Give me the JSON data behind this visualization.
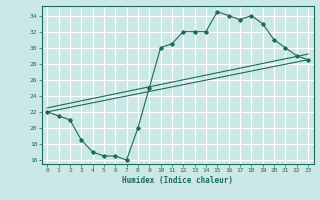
{
  "xlabel": "Humidex (Indice chaleur)",
  "ylabel": "",
  "xlim": [
    -0.5,
    23.5
  ],
  "ylim": [
    15.5,
    35.2
  ],
  "xticks": [
    0,
    1,
    2,
    3,
    4,
    5,
    6,
    7,
    8,
    9,
    10,
    11,
    12,
    13,
    14,
    15,
    16,
    17,
    18,
    19,
    20,
    21,
    22,
    23
  ],
  "yticks": [
    16,
    18,
    20,
    22,
    24,
    26,
    28,
    30,
    32,
    34
  ],
  "bg_color": "#cce8e6",
  "line_color": "#1a6b5a",
  "grid_color": "#ffffff",
  "line1_x": [
    0,
    1,
    2,
    3,
    4,
    5,
    6,
    7,
    8,
    9,
    10,
    11,
    12,
    13,
    14,
    15,
    16,
    17,
    18,
    19,
    20,
    21,
    22,
    23
  ],
  "line1_y": [
    22.0,
    21.5,
    21.0,
    18.5,
    17.0,
    16.5,
    16.5,
    16.0,
    20.0,
    25.0,
    30.0,
    30.5,
    32.0,
    32.0,
    32.0,
    34.5,
    34.0,
    33.5,
    34.0,
    33.0,
    31.0,
    30.0,
    29.0,
    28.5
  ],
  "line2_x": [
    0,
    23
  ],
  "line2_y": [
    22.0,
    28.5
  ],
  "line3_x": [
    0,
    23
  ],
  "line3_y": [
    22.5,
    29.2
  ]
}
